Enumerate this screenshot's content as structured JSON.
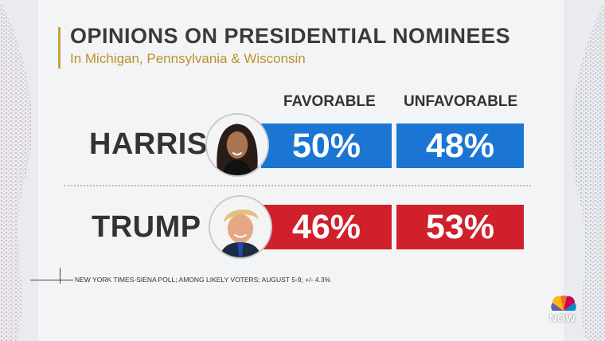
{
  "chart_data": {
    "type": "bar",
    "title": "OPINIONS ON PRESIDENTIAL NOMINEES",
    "subtitle": "In Michigan, Pennsylvania & Wisconsin",
    "categories": [
      "HARRIS",
      "TRUMP"
    ],
    "series": [
      {
        "name": "FAVORABLE",
        "values": [
          50,
          46
        ]
      },
      {
        "name": "UNFAVORABLE",
        "values": [
          48,
          53
        ]
      }
    ],
    "value_labels": {
      "harris_favorable": "50%",
      "harris_unfavorable": "48%",
      "trump_favorable": "46%",
      "trump_unfavorable": "53%"
    },
    "source": "NEW YORK TIMES-SIENA POLL; AMONG LIKELY VOTERS; AUGUST 5-9; +/- 4.3%"
  },
  "colors": {
    "harris": "#1a76d2",
    "trump": "#d0202c",
    "title_accent": "#c8a23a"
  },
  "logo": {
    "icon": "peacock-icon",
    "text": "NOW"
  }
}
